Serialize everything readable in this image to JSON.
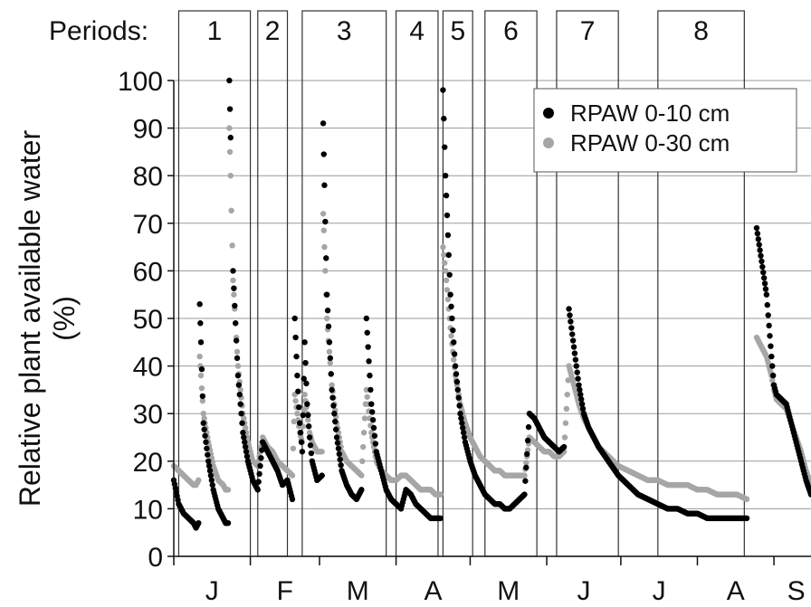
{
  "chart_data": {
    "type": "scatter",
    "title": "",
    "ylabel_line1": "Relative plant available water",
    "ylabel_line2": "(%)",
    "xlabel": "",
    "ylim": [
      0,
      100
    ],
    "yticks": [
      0,
      10,
      20,
      30,
      40,
      50,
      60,
      70,
      80,
      90,
      100
    ],
    "grid": true,
    "legend_placement": "top-right",
    "months": [
      "J",
      "F",
      "M",
      "A",
      "M",
      "J",
      "J",
      "A",
      "S"
    ],
    "periods_label": "Periods:",
    "periods": [
      {
        "label": "1",
        "start_day": 2,
        "end_day": 31
      },
      {
        "label": "2",
        "start_day": 34,
        "end_day": 46
      },
      {
        "label": "3",
        "start_day": 52,
        "end_day": 86
      },
      {
        "label": "4",
        "start_day": 90,
        "end_day": 107
      },
      {
        "label": "5",
        "start_day": 109,
        "end_day": 121
      },
      {
        "label": "6",
        "start_day": 126,
        "end_day": 147
      },
      {
        "label": "7",
        "start_day": 155,
        "end_day": 180
      },
      {
        "label": "8",
        "start_day": 196,
        "end_day": 231
      }
    ],
    "month_boundaries_day": [
      0,
      31,
      59,
      90,
      120,
      151,
      181,
      212,
      243,
      273
    ],
    "x_domain_days": [
      0,
      258
    ],
    "series": [
      {
        "name": "RPAW 0-10 cm",
        "color": "#000000",
        "x": [
          0,
          2,
          4,
          6,
          8,
          9,
          10,
          10.5,
          11,
          12,
          14,
          16,
          18,
          20,
          21,
          22,
          22.5,
          23,
          24,
          26,
          28,
          30,
          32,
          34,
          36,
          38,
          40,
          42,
          44,
          46,
          48,
          49,
          50,
          51,
          52,
          53,
          54,
          55,
          56,
          58,
          60,
          60.5,
          61,
          62,
          64,
          66,
          68,
          70,
          72,
          74,
          76,
          78,
          80,
          82,
          84,
          86,
          88,
          90,
          92,
          94,
          96,
          98,
          100,
          102,
          104,
          106,
          108,
          109,
          110,
          112,
          114,
          116,
          118,
          120,
          122,
          124,
          126,
          128,
          130,
          132,
          134,
          136,
          138,
          140,
          142,
          144,
          146,
          148,
          150,
          152,
          154,
          156,
          158,
          160,
          162,
          164,
          166,
          168,
          170,
          172,
          176,
          180,
          184,
          188,
          192,
          196,
          200,
          204,
          208,
          212,
          216,
          220,
          224,
          228,
          232,
          236,
          240,
          242,
          243,
          244,
          246,
          248,
          250,
          252,
          254,
          256,
          258
        ],
        "y": [
          16,
          11,
          9,
          8,
          7,
          6,
          7,
          53,
          45,
          28,
          20,
          14,
          10,
          8,
          7,
          7,
          100,
          88,
          60,
          38,
          26,
          20,
          16,
          14,
          24,
          22,
          20,
          18,
          15,
          16,
          12,
          50,
          38,
          28,
          22,
          45,
          32,
          25,
          20,
          16,
          17,
          91,
          78,
          55,
          35,
          25,
          18,
          15,
          13,
          12,
          14,
          50,
          32,
          22,
          18,
          14,
          12,
          11,
          10,
          14,
          13,
          11,
          10,
          9,
          8,
          8,
          8,
          98,
          80,
          55,
          40,
          30,
          24,
          20,
          17,
          15,
          13,
          12,
          11,
          11,
          10,
          10,
          11,
          12,
          13,
          30,
          29,
          27,
          25,
          24,
          23,
          22,
          23,
          52,
          44,
          36,
          30,
          27,
          25,
          23,
          20,
          17,
          15,
          13,
          12,
          11,
          10,
          10,
          9,
          9,
          8,
          8,
          8,
          8,
          8,
          69,
          55,
          42,
          36,
          34,
          33,
          32,
          28,
          24,
          20,
          16,
          13
        ]
      },
      {
        "name": "RPAW 0-30 cm",
        "color": "#a6a6a6",
        "x": [
          0,
          2,
          4,
          6,
          8,
          9,
          10,
          10.5,
          11,
          12,
          14,
          16,
          18,
          20,
          21,
          22,
          22.5,
          23,
          24,
          26,
          28,
          30,
          32,
          34,
          36,
          38,
          40,
          42,
          44,
          46,
          48,
          49,
          50,
          51,
          52,
          53,
          54,
          55,
          56,
          58,
          60,
          60.5,
          61,
          62,
          64,
          66,
          68,
          70,
          72,
          74,
          76,
          78,
          80,
          82,
          84,
          86,
          88,
          90,
          92,
          94,
          96,
          98,
          100,
          102,
          104,
          106,
          108,
          109,
          110,
          112,
          114,
          116,
          118,
          120,
          122,
          124,
          126,
          128,
          130,
          132,
          134,
          136,
          138,
          140,
          142,
          144,
          146,
          148,
          150,
          152,
          154,
          156,
          158,
          160,
          162,
          164,
          166,
          168,
          170,
          172,
          176,
          180,
          184,
          188,
          192,
          196,
          200,
          204,
          208,
          212,
          216,
          220,
          224,
          228,
          232,
          236,
          240,
          242,
          243,
          244,
          246,
          248,
          250,
          252,
          254,
          256,
          258
        ],
        "y": [
          19,
          18,
          17,
          16,
          15,
          15,
          16,
          42,
          38,
          30,
          24,
          19,
          16,
          15,
          14,
          14,
          90,
          80,
          58,
          40,
          30,
          24,
          20,
          19,
          25,
          23,
          22,
          20,
          19,
          18,
          17,
          34,
          30,
          26,
          24,
          34,
          30,
          26,
          24,
          22,
          22,
          72,
          65,
          50,
          36,
          28,
          22,
          20,
          19,
          18,
          17,
          35,
          26,
          20,
          18,
          17,
          16,
          16,
          17,
          17,
          16,
          15,
          14,
          14,
          14,
          13,
          13,
          65,
          60,
          48,
          38,
          32,
          28,
          25,
          23,
          21,
          20,
          19,
          18,
          18,
          17,
          17,
          17,
          17,
          17,
          25,
          24,
          23,
          22,
          22,
          21,
          21,
          22,
          40,
          36,
          32,
          29,
          27,
          25,
          23,
          21,
          19,
          18,
          17,
          16,
          16,
          15,
          15,
          15,
          14,
          14,
          13,
          13,
          13,
          12,
          46,
          42,
          38,
          35,
          33,
          32,
          31,
          28,
          25,
          22,
          18,
          15
        ]
      }
    ]
  }
}
